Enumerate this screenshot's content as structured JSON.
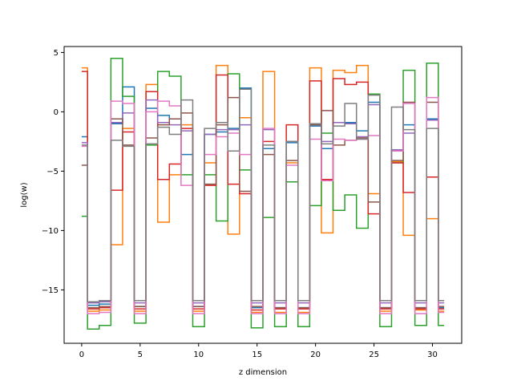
{
  "chart_data": {
    "type": "line",
    "step": true,
    "title": "",
    "xlabel": "z dimension",
    "ylabel": "log(w)",
    "xlim": [
      -1.5,
      32.5
    ],
    "ylim": [
      -19.5,
      5.5
    ],
    "xticks": [
      0,
      5,
      10,
      15,
      20,
      25,
      30
    ],
    "yticks": [
      5,
      0,
      -5,
      -10,
      -15
    ],
    "grid": false,
    "legend": "none",
    "x": [
      0,
      1,
      2,
      3,
      4,
      5,
      6,
      7,
      8,
      9,
      10,
      11,
      12,
      13,
      14,
      15,
      16,
      17,
      18,
      19,
      20,
      21,
      22,
      23,
      24,
      25,
      26,
      27,
      28,
      29,
      30,
      31
    ],
    "series": [
      {
        "color": "#1f77b4",
        "values": [
          -2.1,
          -16.3,
          -16.2,
          -1.0,
          2.1,
          -16.4,
          0.3,
          -0.3,
          -0.6,
          -3.6,
          -16.4,
          -1.9,
          -1.7,
          -1.4,
          2.0,
          -16.5,
          -3.1,
          -16.5,
          -2.6,
          -16.5,
          -1.2,
          -3.1,
          -0.9,
          -0.9,
          -1.6,
          0.8,
          -16.5,
          -3.2,
          -1.1,
          -16.5,
          -0.6,
          -16.5
        ]
      },
      {
        "color": "#ff7f0e",
        "values": [
          3.7,
          -16.8,
          -16.7,
          -11.2,
          -1.4,
          -16.8,
          2.3,
          -9.3,
          -5.3,
          -1.1,
          -16.8,
          -4.3,
          3.9,
          -10.3,
          -0.5,
          -16.9,
          3.4,
          -16.9,
          -4.3,
          -16.9,
          3.7,
          -10.2,
          3.5,
          3.3,
          3.9,
          -6.9,
          -16.8,
          -4.2,
          -10.4,
          -16.7,
          -9.0,
          -16.8
        ]
      },
      {
        "color": "#2ca02c",
        "values": [
          -8.8,
          -18.3,
          -18.0,
          4.5,
          1.3,
          -17.8,
          -2.8,
          3.4,
          3.0,
          -5.3,
          -18.1,
          -5.3,
          -9.2,
          3.2,
          -4.9,
          -18.2,
          -8.9,
          -18.1,
          -5.9,
          -18.1,
          -7.9,
          -1.8,
          -8.3,
          -7.0,
          -9.8,
          1.5,
          -18.1,
          -4.3,
          3.5,
          -18.0,
          4.1,
          -18.0
        ]
      },
      {
        "color": "#d62728",
        "values": [
          3.4,
          -16.6,
          -16.5,
          -6.6,
          -1.7,
          -16.6,
          1.7,
          -5.7,
          -4.4,
          -1.4,
          -16.6,
          -6.2,
          3.1,
          -6.1,
          -6.9,
          -16.7,
          -2.5,
          -16.6,
          -1.1,
          -16.6,
          2.6,
          -5.7,
          2.8,
          2.3,
          2.5,
          -8.6,
          -16.6,
          -4.3,
          -6.8,
          -16.6,
          -5.5,
          -16.6
        ]
      },
      {
        "color": "#9467bd",
        "values": [
          -2.6,
          -16.1,
          -16.0,
          -0.9,
          -0.1,
          -16.1,
          1.0,
          -0.9,
          -1.1,
          -1.6,
          -16.1,
          -1.9,
          -1.5,
          -1.5,
          -1.1,
          -16.1,
          -1.5,
          -16.1,
          -2.5,
          -16.1,
          -1.0,
          -2.5,
          -0.9,
          -1.0,
          -2.1,
          0.6,
          -16.1,
          -3.2,
          -1.8,
          -16.1,
          -0.7,
          -16.1
        ]
      },
      {
        "color": "#8c564b",
        "values": [
          -4.5,
          -16.5,
          -16.4,
          -0.6,
          -2.8,
          -16.4,
          -2.2,
          -1.1,
          -0.6,
          -0.1,
          -16.4,
          -6.1,
          -1.1,
          1.2,
          -6.7,
          -16.4,
          -3.6,
          -16.5,
          -4.1,
          -16.5,
          -1.1,
          0.1,
          -2.8,
          -2.4,
          -2.2,
          -7.6,
          -16.5,
          -4.1,
          0.8,
          -16.5,
          0.8,
          -16.4
        ]
      },
      {
        "color": "#e377c2",
        "values": [
          -2.9,
          -17.0,
          -16.9,
          0.9,
          0.7,
          -17.0,
          0.0,
          0.9,
          0.5,
          -6.2,
          -17.0,
          -3.6,
          -2.1,
          -1.8,
          -3.6,
          -17.0,
          -1.4,
          -17.0,
          -4.5,
          -17.0,
          -2.3,
          -5.8,
          -2.3,
          -2.4,
          -2.3,
          -2.0,
          -17.0,
          -3.3,
          0.7,
          -17.0,
          1.2,
          -16.9
        ]
      },
      {
        "color": "#7f7f7f",
        "values": [
          -2.8,
          -16.0,
          -15.9,
          -2.4,
          -2.9,
          -15.9,
          -2.7,
          -1.3,
          -1.9,
          1.0,
          -15.9,
          -1.4,
          -0.9,
          -3.3,
          1.9,
          -15.9,
          -2.8,
          -15.9,
          -2.5,
          -15.9,
          -1.0,
          -2.7,
          -1.2,
          0.7,
          -2.3,
          1.4,
          -15.9,
          0.4,
          -1.5,
          -15.9,
          -1.4,
          -15.9
        ]
      }
    ]
  }
}
